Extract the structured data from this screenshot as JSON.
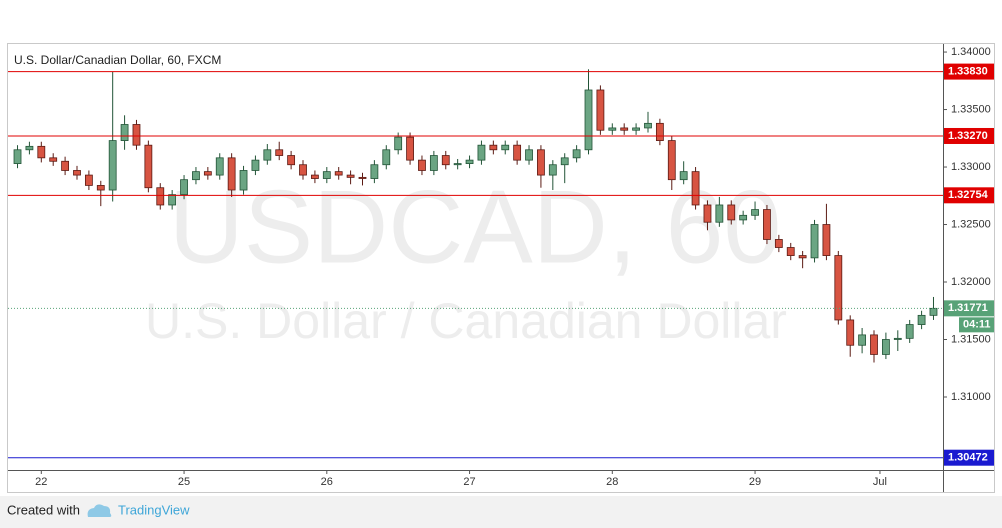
{
  "chart_data": {
    "type": "candlestick",
    "title": "U.S. Dollar/Canadian Dollar, 60, FXCM",
    "watermark": "USDCAD, 60",
    "watermark_subtitle": "U.S. Dollar / Canadian Dollar",
    "x": [
      -2,
      -1,
      0,
      1,
      2,
      3,
      4,
      5,
      6,
      7,
      8,
      9,
      10,
      11,
      12,
      13,
      14,
      15,
      16,
      17,
      18,
      19,
      20,
      21,
      22,
      23,
      24,
      25,
      26,
      27,
      28,
      29,
      30,
      31,
      32,
      33,
      34,
      35,
      36,
      37,
      38,
      39,
      40,
      41,
      42,
      43,
      44,
      45,
      46,
      47,
      48,
      49,
      50,
      51,
      52,
      53,
      54,
      55,
      56,
      57,
      58,
      59,
      60,
      61,
      62,
      63,
      64,
      65,
      66,
      67,
      68,
      69,
      70,
      71,
      72,
      73,
      74,
      75
    ],
    "open": [
      1.3303,
      1.3315,
      1.3318,
      1.3308,
      1.3305,
      1.3297,
      1.3293,
      1.3284,
      1.328,
      1.3323,
      1.3337,
      1.3319,
      1.3282,
      1.3267,
      1.3276,
      1.3289,
      1.3296,
      1.3293,
      1.3308,
      1.328,
      1.3297,
      1.3306,
      1.3315,
      1.331,
      1.3302,
      1.3293,
      1.329,
      1.3296,
      1.3293,
      1.3291,
      1.329,
      1.3302,
      1.3315,
      1.3326,
      1.3306,
      1.3297,
      1.331,
      1.3302,
      1.3303,
      1.3306,
      1.3319,
      1.3315,
      1.3319,
      1.3306,
      1.3315,
      1.3293,
      1.3302,
      1.3308,
      1.3315,
      1.3367,
      1.3332,
      1.3334,
      1.3332,
      1.3334,
      1.3338,
      1.3323,
      1.3289,
      1.3296,
      1.3267,
      1.3252,
      1.3267,
      1.3254,
      1.3258,
      1.3263,
      1.3237,
      1.323,
      1.3223,
      1.3221,
      1.325,
      1.3223,
      1.3167,
      1.3145,
      1.3154,
      1.3137,
      1.315,
      1.3151,
      1.3163,
      1.3171
    ],
    "high": [
      1.3319,
      1.3322,
      1.3322,
      1.3312,
      1.3309,
      1.3301,
      1.3297,
      1.3288,
      1.3383,
      1.3345,
      1.3341,
      1.3323,
      1.3286,
      1.328,
      1.3293,
      1.33,
      1.33,
      1.3312,
      1.3312,
      1.3301,
      1.331,
      1.332,
      1.3322,
      1.3314,
      1.3306,
      1.3297,
      1.33,
      1.33,
      1.3297,
      1.3295,
      1.3306,
      1.3319,
      1.333,
      1.333,
      1.331,
      1.3314,
      1.3314,
      1.3307,
      1.331,
      1.3323,
      1.3323,
      1.3323,
      1.3323,
      1.3319,
      1.3319,
      1.3306,
      1.3312,
      1.3319,
      1.3385,
      1.3371,
      1.3338,
      1.3338,
      1.3338,
      1.3348,
      1.3342,
      1.3327,
      1.3305,
      1.33,
      1.3271,
      1.3274,
      1.3271,
      1.3262,
      1.327,
      1.3267,
      1.3241,
      1.3234,
      1.3227,
      1.3254,
      1.3268,
      1.3227,
      1.3171,
      1.316,
      1.3158,
      1.3156,
      1.3158,
      1.3167,
      1.3175,
      1.3187
    ],
    "low": [
      1.3299,
      1.3311,
      1.3304,
      1.3301,
      1.3293,
      1.3289,
      1.328,
      1.3266,
      1.327,
      1.3315,
      1.3315,
      1.3278,
      1.3263,
      1.3263,
      1.3272,
      1.3285,
      1.3289,
      1.3289,
      1.3274,
      1.3276,
      1.3293,
      1.3302,
      1.3306,
      1.3298,
      1.3289,
      1.3286,
      1.3286,
      1.3289,
      1.3285,
      1.3284,
      1.3286,
      1.3298,
      1.3311,
      1.3302,
      1.3293,
      1.3293,
      1.3298,
      1.3298,
      1.3299,
      1.3302,
      1.3311,
      1.3311,
      1.3302,
      1.3302,
      1.3282,
      1.328,
      1.3286,
      1.3304,
      1.3311,
      1.3328,
      1.3328,
      1.3328,
      1.3328,
      1.333,
      1.3319,
      1.328,
      1.3285,
      1.3263,
      1.3245,
      1.3248,
      1.325,
      1.325,
      1.3254,
      1.3233,
      1.3226,
      1.3219,
      1.3212,
      1.3217,
      1.3219,
      1.3163,
      1.3135,
      1.3138,
      1.313,
      1.3133,
      1.314,
      1.3147,
      1.3159,
      1.3167
    ],
    "close": [
      1.3315,
      1.3318,
      1.3308,
      1.3305,
      1.3297,
      1.3293,
      1.3284,
      1.328,
      1.3323,
      1.3337,
      1.3319,
      1.3282,
      1.3267,
      1.3276,
      1.3289,
      1.3296,
      1.3293,
      1.3308,
      1.328,
      1.3297,
      1.3306,
      1.3315,
      1.331,
      1.3302,
      1.3293,
      1.329,
      1.3296,
      1.3293,
      1.3291,
      1.329,
      1.3302,
      1.3315,
      1.3326,
      1.3306,
      1.3297,
      1.331,
      1.3302,
      1.3303,
      1.3306,
      1.3319,
      1.3315,
      1.3319,
      1.3306,
      1.3315,
      1.3293,
      1.3302,
      1.3308,
      1.3315,
      1.3367,
      1.3332,
      1.3334,
      1.3332,
      1.3334,
      1.3338,
      1.3323,
      1.3289,
      1.3296,
      1.3267,
      1.3252,
      1.3267,
      1.3254,
      1.3258,
      1.3263,
      1.3237,
      1.323,
      1.3223,
      1.3221,
      1.325,
      1.3223,
      1.3167,
      1.3145,
      1.3154,
      1.3137,
      1.315,
      1.3151,
      1.3163,
      1.3171,
      1.31771
    ],
    "up_color": "#6ba583",
    "down_color": "#d75442",
    "xlim": [
      -2.8,
      75.8
    ],
    "xticks": [
      {
        "value": 0,
        "label": "22"
      },
      {
        "value": 12,
        "label": "25"
      },
      {
        "value": 24,
        "label": "26"
      },
      {
        "value": 36,
        "label": "27"
      },
      {
        "value": 48,
        "label": "28"
      },
      {
        "value": 60,
        "label": "29"
      },
      {
        "value": 70.5,
        "label": "Jul"
      }
    ],
    "ylim": [
      1.30365,
      1.3407
    ],
    "yticks": [
      {
        "value": 1.31,
        "label": "1.31000"
      },
      {
        "value": 1.315,
        "label": "1.31500"
      },
      {
        "value": 1.32,
        "label": "1.32000"
      },
      {
        "value": 1.325,
        "label": "1.32500"
      },
      {
        "value": 1.33,
        "label": "1.33000"
      },
      {
        "value": 1.335,
        "label": "1.33500"
      },
      {
        "value": 1.34,
        "label": "1.34000"
      }
    ],
    "levels": [
      {
        "price": {
          "value": 1.3383,
          "label": "1.33830"
        },
        "color": "#e00000"
      },
      {
        "price": {
          "value": 1.3327,
          "label": "1.33270"
        },
        "color": "#e00000"
      },
      {
        "price": 1.32754,
        "color": "#e00000"
      },
      {
        "price": 1.30472,
        "color": "#1a1ad0"
      }
    ],
    "last_price": 1.31771,
    "last_price_color": "#58a277",
    "countdown": "04:11"
  },
  "footer": {
    "created": "Created with",
    "brand": "TradingView"
  }
}
